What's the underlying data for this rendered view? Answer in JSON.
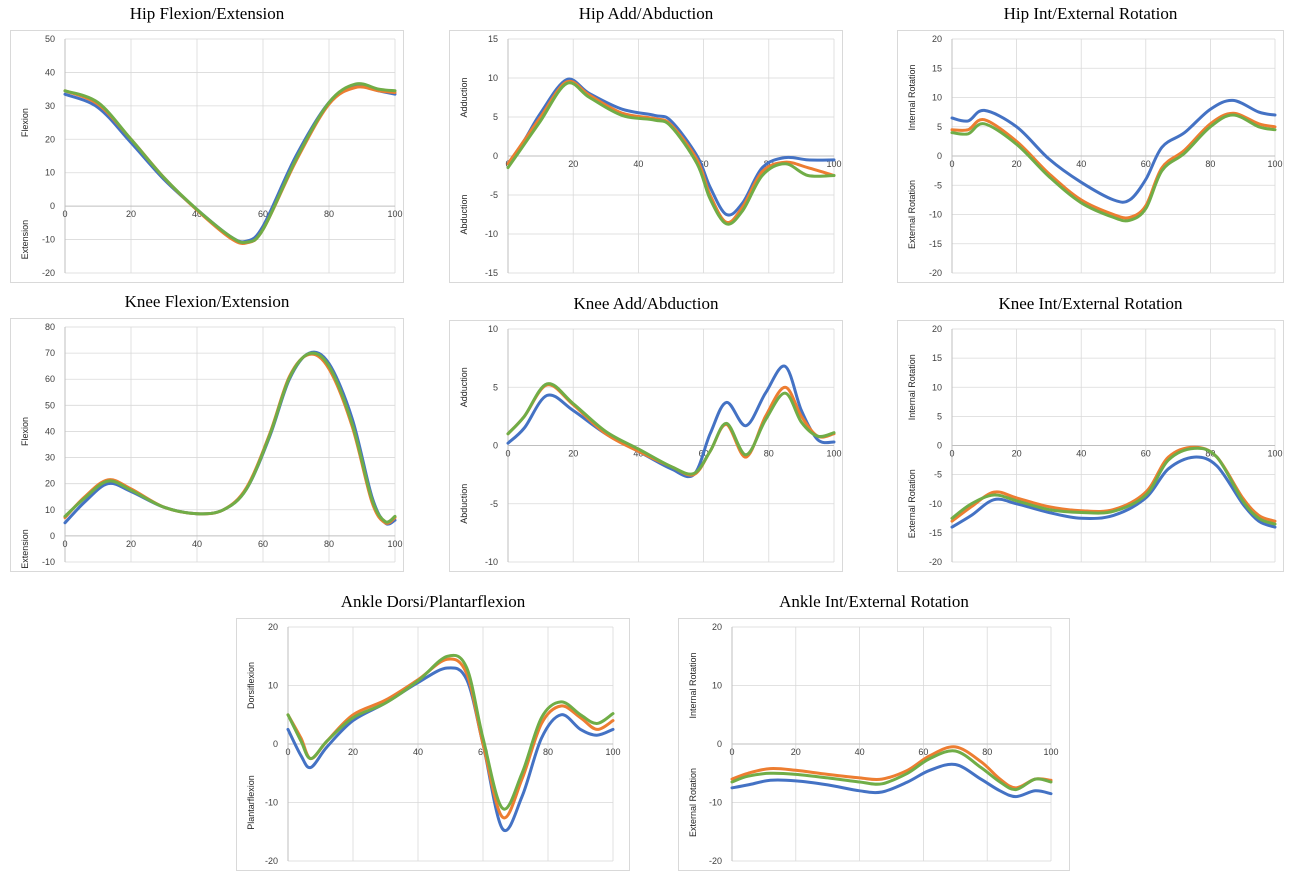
{
  "colors": {
    "series1": "#4472C4",
    "series2": "#ED7D31",
    "series3": "#70AD47",
    "grid": "#d9d9d9",
    "axis": "#bfbfbf"
  },
  "chart_data": [
    {
      "type": "line",
      "title": "Hip Flexion/Extension",
      "ylabel_top": "Flexion",
      "ylabel_bottom": "Extension",
      "xlim": [
        0,
        100
      ],
      "ylim": [
        -20,
        50
      ],
      "xticks": [
        0,
        20,
        40,
        60,
        80,
        100
      ],
      "yticks": [
        -20,
        -10,
        0,
        10,
        20,
        30,
        40,
        50
      ],
      "xtick_labels": [
        "0",
        "20",
        "40",
        "60",
        "80",
        "100"
      ],
      "ytick_labels": [
        "-20",
        "-10",
        "0",
        "10",
        "20",
        "30",
        "40",
        "50"
      ],
      "x": [
        0,
        10,
        20,
        30,
        40,
        50,
        55,
        60,
        70,
        80,
        88,
        95,
        100
      ],
      "series": [
        {
          "values": [
            33.5,
            29.5,
            19,
            8,
            -1,
            -9,
            -10.5,
            -6,
            15,
            31,
            36,
            34.5,
            33.5
          ]
        },
        {
          "values": [
            34.5,
            30.5,
            20,
            8.5,
            -1.2,
            -9.5,
            -11,
            -7,
            13.5,
            30.5,
            35.5,
            34.5,
            34
          ]
        },
        {
          "values": [
            34.5,
            31,
            20,
            8.5,
            -1,
            -9,
            -10.8,
            -7,
            14,
            31,
            36.5,
            35,
            34.5
          ]
        }
      ]
    },
    {
      "type": "line",
      "title": "Hip Add/Abduction",
      "ylabel_top": "Adduction",
      "ylabel_bottom": "Abduction",
      "xlim": [
        0,
        100
      ],
      "ylim": [
        -15,
        15
      ],
      "xticks": [
        0,
        20,
        40,
        60,
        80,
        100
      ],
      "yticks": [
        -15,
        -10,
        -5,
        0,
        5,
        10,
        15
      ],
      "xtick_labels": [
        "0",
        "20",
        "40",
        "60",
        "80",
        "100"
      ],
      "ytick_labels": [
        "-15",
        "-10",
        "-5",
        "0",
        "5",
        "10",
        "15"
      ],
      "x": [
        0,
        5,
        10,
        18,
        25,
        35,
        45,
        50,
        58,
        62,
        67,
        72,
        78,
        85,
        92,
        100
      ],
      "series": [
        {
          "values": [
            -1,
            2,
            5.5,
            9.8,
            8,
            6,
            5.2,
            4.5,
            0,
            -4,
            -7.5,
            -6,
            -1.5,
            -0.2,
            -0.5,
            -0.5
          ]
        },
        {
          "values": [
            -1,
            2,
            5,
            9.5,
            7.8,
            5.5,
            4.8,
            4,
            -0.5,
            -5,
            -8.5,
            -6.5,
            -2,
            -0.8,
            -1.5,
            -2.5
          ]
        },
        {
          "values": [
            -1.5,
            1.5,
            4.5,
            9.3,
            7.5,
            5.2,
            4.6,
            3.8,
            -1,
            -5.5,
            -8.7,
            -7,
            -2.5,
            -1,
            -2.5,
            -2.5
          ]
        }
      ]
    },
    {
      "type": "line",
      "title": "Hip Int/External Rotation",
      "ylabel_top": "Internal Rotation",
      "ylabel_bottom": "External Rotation",
      "xlim": [
        0,
        100
      ],
      "ylim": [
        -20,
        20
      ],
      "xticks": [
        0,
        20,
        40,
        60,
        80,
        100
      ],
      "yticks": [
        -20,
        -15,
        -10,
        -5,
        0,
        5,
        10,
        15,
        20
      ],
      "xtick_labels": [
        "0",
        "20",
        "40",
        "60",
        "80",
        "100"
      ],
      "ytick_labels": [
        "-20",
        "-15",
        "-10",
        "-5",
        "0",
        "5",
        "10",
        "15",
        "20"
      ],
      "x": [
        0,
        5,
        10,
        20,
        30,
        40,
        50,
        55,
        60,
        65,
        72,
        80,
        87,
        95,
        100
      ],
      "series": [
        {
          "values": [
            6.5,
            6,
            7.8,
            5,
            -0.5,
            -4.5,
            -7.5,
            -7.5,
            -4,
            1.5,
            4,
            8,
            9.5,
            7.5,
            7
          ]
        },
        {
          "values": [
            4.5,
            4.5,
            6.2,
            2.5,
            -3,
            -7.5,
            -10,
            -10.5,
            -8.5,
            -2,
            1,
            5.5,
            7.3,
            5.5,
            5
          ]
        },
        {
          "values": [
            4,
            3.8,
            5.5,
            2,
            -3.5,
            -8,
            -10.5,
            -11,
            -9,
            -2.5,
            0.5,
            5,
            7,
            5,
            4.5
          ]
        }
      ]
    },
    {
      "type": "line",
      "title": "Knee Flexion/Extension",
      "ylabel_top": "Flexion",
      "ylabel_bottom": "Extension",
      "xlim": [
        0,
        100
      ],
      "ylim": [
        -10,
        80
      ],
      "xticks": [
        0,
        20,
        40,
        60,
        80,
        100
      ],
      "yticks": [
        -10,
        0,
        10,
        20,
        30,
        40,
        50,
        60,
        70,
        80
      ],
      "xtick_labels": [
        "0",
        "20",
        "40",
        "60",
        "80",
        "100"
      ],
      "ytick_labels": [
        "-10",
        "0",
        "10",
        "20",
        "30",
        "40",
        "50",
        "60",
        "70",
        "80"
      ],
      "x": [
        0,
        6,
        13,
        20,
        30,
        40,
        48,
        55,
        62,
        68,
        74,
        80,
        87,
        93,
        97,
        100
      ],
      "series": [
        {
          "values": [
            5,
            13,
            20,
            17,
            11,
            8.5,
            10,
            18,
            38,
            60,
            70,
            66,
            45,
            15,
            5,
            6
          ]
        },
        {
          "values": [
            7,
            15,
            21.5,
            18,
            11,
            8.5,
            10,
            18.5,
            39,
            61,
            69.5,
            64,
            42,
            13,
            5,
            7
          ]
        },
        {
          "values": [
            7.5,
            14.5,
            21,
            17.5,
            11,
            8.5,
            10,
            18,
            38.5,
            60.5,
            69.8,
            65,
            43,
            14,
            5.5,
            7.5
          ]
        }
      ]
    },
    {
      "type": "line",
      "title": "Knee Add/Abduction",
      "ylabel_top": "Adduction",
      "ylabel_bottom": "Abduction",
      "xlim": [
        0,
        100
      ],
      "ylim": [
        -10,
        10
      ],
      "xticks": [
        0,
        20,
        40,
        60,
        80,
        100
      ],
      "yticks": [
        -10,
        -5,
        0,
        5,
        10
      ],
      "xtick_labels": [
        "0",
        "20",
        "40",
        "60",
        "80",
        "100"
      ],
      "ytick_labels": [
        "-10",
        "-5",
        "0",
        "5",
        "10"
      ],
      "x": [
        0,
        5,
        12,
        20,
        30,
        40,
        50,
        57,
        62,
        67,
        73,
        79,
        85,
        90,
        95,
        100
      ],
      "series": [
        {
          "values": [
            0.2,
            1.5,
            4.3,
            3,
            1,
            -0.5,
            -2,
            -2.5,
            1,
            3.7,
            1.7,
            4.5,
            6.8,
            3,
            0.5,
            0.3
          ]
        },
        {
          "values": [
            1,
            2.5,
            5.2,
            3.5,
            1,
            -0.5,
            -1.8,
            -2.5,
            -0.5,
            1.8,
            -1,
            2.5,
            5,
            2.5,
            0.8,
            1
          ]
        },
        {
          "values": [
            1,
            2.5,
            5.3,
            3.6,
            1.2,
            -0.3,
            -1.8,
            -2.4,
            -0.5,
            1.9,
            -0.8,
            2.2,
            4.5,
            2,
            0.8,
            1.1
          ]
        }
      ]
    },
    {
      "type": "line",
      "title": "Knee Int/External Rotation",
      "ylabel_top": "Internal Rotation",
      "ylabel_bottom": "External Rotation",
      "xlim": [
        0,
        100
      ],
      "ylim": [
        -20,
        20
      ],
      "xticks": [
        0,
        20,
        40,
        60,
        80,
        100
      ],
      "yticks": [
        -20,
        -15,
        -10,
        -5,
        0,
        5,
        10,
        15,
        20
      ],
      "xtick_labels": [
        "0",
        "20",
        "40",
        "60",
        "80",
        "100"
      ],
      "ytick_labels": [
        "-20",
        "-15",
        "-10",
        "-5",
        "0",
        "5",
        "10",
        "15",
        "20"
      ],
      "x": [
        0,
        6,
        13,
        20,
        30,
        40,
        50,
        60,
        67,
        75,
        82,
        90,
        95,
        100
      ],
      "series": [
        {
          "values": [
            -14,
            -12,
            -9.3,
            -10,
            -11.5,
            -12.5,
            -12,
            -9,
            -4,
            -2,
            -3.5,
            -10,
            -13,
            -14
          ]
        },
        {
          "values": [
            -13,
            -10.5,
            -8,
            -9,
            -10.5,
            -11.2,
            -11,
            -8,
            -2,
            -0.3,
            -2,
            -9,
            -12,
            -13
          ]
        },
        {
          "values": [
            -12.5,
            -10,
            -8.5,
            -9.5,
            -11,
            -11.5,
            -11.3,
            -8.5,
            -2.5,
            -0.5,
            -2,
            -9.5,
            -12.5,
            -13.5
          ]
        }
      ]
    },
    {
      "type": "line",
      "title": "Ankle Dorsi/Plantarflexion",
      "ylabel_top": "Dorsiflexion",
      "ylabel_bottom": "Plantarflexion",
      "xlim": [
        0,
        100
      ],
      "ylim": [
        -20,
        20
      ],
      "xticks": [
        0,
        20,
        40,
        60,
        80,
        100
      ],
      "yticks": [
        -20,
        -10,
        0,
        10,
        20
      ],
      "xtick_labels": [
        "0",
        "20",
        "40",
        "60",
        "80",
        "100"
      ],
      "ytick_labels": [
        "-20",
        "-10",
        "0",
        "10",
        "20"
      ],
      "x": [
        0,
        4,
        7,
        12,
        20,
        30,
        40,
        49,
        55,
        60,
        66,
        72,
        78,
        84,
        90,
        95,
        100
      ],
      "series": [
        {
          "values": [
            2.5,
            -2,
            -4,
            -0.5,
            4,
            7,
            10.5,
            13,
            11,
            0,
            -14.5,
            -9,
            1,
            5,
            2.5,
            1.5,
            2.5
          ]
        },
        {
          "values": [
            5,
            1,
            -2.5,
            0.5,
            5,
            7.5,
            11,
            14.5,
            12,
            0,
            -12.5,
            -6,
            3.5,
            6.5,
            4.5,
            2.5,
            4
          ]
        },
        {
          "values": [
            5,
            0.5,
            -2.5,
            0.5,
            4.5,
            7,
            10.8,
            15,
            13,
            1,
            -11,
            -5,
            4.5,
            7.2,
            5,
            3.5,
            5.2
          ]
        }
      ]
    },
    {
      "type": "line",
      "title": "Ankle Int/External Rotation",
      "ylabel_top": "Internal Rotation",
      "ylabel_bottom": "External Rotation",
      "xlim": [
        0,
        100
      ],
      "ylim": [
        -20,
        20
      ],
      "xticks": [
        0,
        20,
        40,
        60,
        80,
        100
      ],
      "yticks": [
        -20,
        -10,
        0,
        10,
        20
      ],
      "xtick_labels": [
        "0",
        "20",
        "40",
        "60",
        "80",
        "100"
      ],
      "ytick_labels": [
        "-20",
        "-10",
        "0",
        "10",
        "20"
      ],
      "x": [
        0,
        5,
        12,
        20,
        30,
        40,
        47,
        55,
        62,
        70,
        78,
        84,
        89,
        95,
        100
      ],
      "series": [
        {
          "values": [
            -7.5,
            -7,
            -6.2,
            -6.3,
            -7,
            -8,
            -8.2,
            -6.5,
            -4.5,
            -3.5,
            -6,
            -8,
            -9,
            -8,
            -8.5
          ]
        },
        {
          "values": [
            -6,
            -5,
            -4.2,
            -4.5,
            -5.2,
            -5.8,
            -6,
            -4.5,
            -2,
            -0.5,
            -3,
            -6,
            -7.5,
            -6,
            -6.2
          ]
        },
        {
          "values": [
            -6.5,
            -5.5,
            -5,
            -5.2,
            -5.8,
            -6.5,
            -6.8,
            -5,
            -2.5,
            -1.2,
            -4,
            -6.5,
            -7.8,
            -6,
            -6.5
          ]
        }
      ]
    }
  ]
}
